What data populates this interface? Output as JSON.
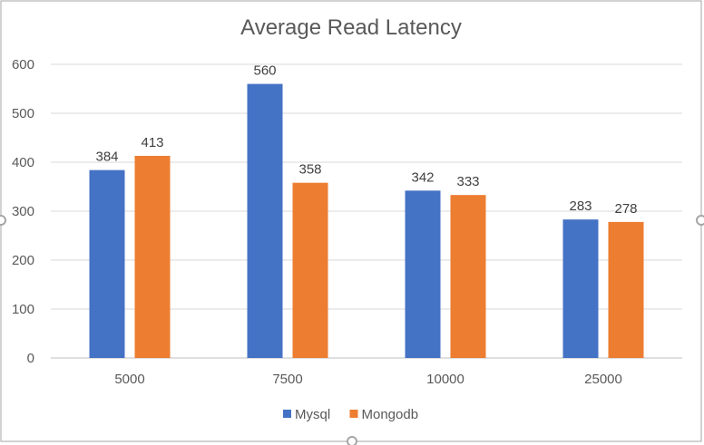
{
  "chart_data": {
    "type": "bar",
    "title": "Average Read Latency",
    "xlabel": "",
    "ylabel": "",
    "categories": [
      "5000",
      "7500",
      "10000",
      "25000"
    ],
    "series": [
      {
        "name": "Mysql",
        "values": [
          384,
          560,
          342,
          283
        ],
        "color": "#4472C4"
      },
      {
        "name": "Mongodb",
        "values": [
          413,
          358,
          333,
          278
        ],
        "color": "#ED7D31"
      }
    ],
    "ylim": [
      0,
      600
    ],
    "yticks": [
      0,
      100,
      200,
      300,
      400,
      500,
      600
    ],
    "grid": true,
    "legend_position": "bottom",
    "data_labels": true
  },
  "colors": {
    "grid": "#D9D9D9",
    "axis": "#BFBFBF",
    "frame_handles": "#A6A6A6"
  }
}
